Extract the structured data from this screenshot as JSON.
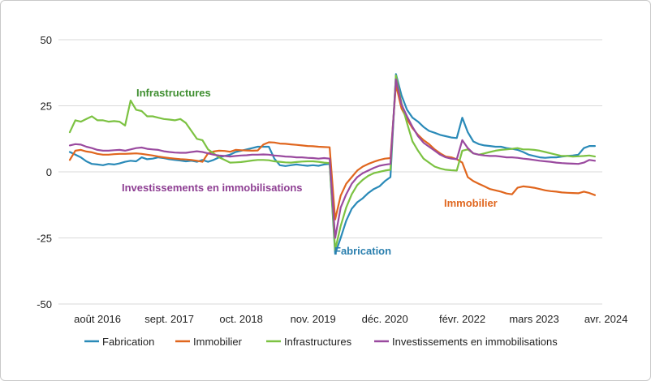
{
  "chart_data": {
    "type": "line",
    "title": "",
    "xlabel": "",
    "ylabel": "",
    "ylim": [
      -50,
      50
    ],
    "yticks": [
      50,
      25,
      0,
      -25,
      -50
    ],
    "ytick_labels": [
      "50",
      "25",
      "0",
      "-25",
      "-50"
    ],
    "xlim": [
      "2016-01",
      "2024-07"
    ],
    "xticks": [
      {
        "date": "2016-08",
        "label": "août 2016"
      },
      {
        "date": "2017-09",
        "label": "sept. 2017"
      },
      {
        "date": "2018-10",
        "label": "oct. 2018"
      },
      {
        "date": "2019-11",
        "label": "nov. 2019"
      },
      {
        "date": "2020-12",
        "label": "déc. 2020"
      },
      {
        "date": "2022-02",
        "label": "févr. 2022"
      },
      {
        "date": "2023-03",
        "label": "mars 2023"
      },
      {
        "date": "2024-04",
        "label": "avr. 2024"
      }
    ],
    "grid": "horizontal",
    "legend_position": "bottom",
    "start": "2016-03",
    "frequency": "monthly",
    "series": [
      {
        "name": "Fabrication",
        "color": "#2A8AB8",
        "label": "Fabrication",
        "values": [
          7.5,
          6.5,
          5.5,
          4.0,
          3.0,
          2.8,
          2.5,
          3.0,
          2.8,
          3.2,
          3.8,
          4.2,
          4.0,
          5.5,
          4.8,
          5.0,
          5.5,
          5.2,
          4.8,
          4.5,
          4.3,
          4.0,
          4.2,
          3.8,
          4.5,
          3.8,
          4.5,
          5.5,
          6.0,
          6.5,
          7.5,
          8.0,
          8.5,
          9.0,
          9.5,
          9.5,
          9.5,
          5.0,
          2.5,
          2.2,
          2.5,
          2.8,
          2.5,
          2.3,
          2.5,
          2.3,
          2.8,
          3.0,
          -31.0,
          -25.0,
          -18.5,
          -14.0,
          -11.5,
          -10.0,
          -8.0,
          -6.5,
          -5.5,
          -3.5,
          -2.0,
          37.0,
          29.0,
          23.5,
          20.5,
          19.0,
          17.0,
          15.5,
          14.8,
          14.0,
          13.5,
          13.0,
          12.8,
          20.5,
          15.0,
          11.5,
          10.5,
          10.0,
          9.8,
          9.5,
          9.5,
          9.0,
          8.7,
          8.3,
          7.5,
          6.5,
          6.0,
          5.5,
          5.3,
          5.5,
          5.5,
          5.8,
          6.0,
          6.2,
          6.5,
          9.0,
          9.8,
          9.8
        ]
      },
      {
        "name": "Immobilier",
        "color": "#E0661E",
        "label": "Immobilier",
        "values": [
          4.5,
          8.0,
          8.3,
          7.7,
          7.4,
          6.8,
          6.5,
          6.5,
          6.7,
          6.8,
          6.8,
          6.9,
          7.0,
          6.8,
          6.5,
          6.2,
          5.8,
          5.5,
          5.2,
          5.0,
          4.8,
          4.7,
          4.5,
          4.2,
          3.8,
          7.0,
          7.7,
          8.0,
          7.9,
          7.6,
          8.3,
          8.2,
          8.1,
          8.0,
          8.1,
          10.3,
          11.2,
          11.1,
          10.7,
          10.6,
          10.4,
          10.2,
          10.0,
          9.8,
          9.7,
          9.5,
          9.4,
          9.3,
          -18.0,
          -9.0,
          -4.5,
          -2.0,
          0.5,
          2.0,
          3.0,
          3.8,
          4.5,
          5.0,
          5.2,
          33.0,
          24.0,
          20.0,
          16.5,
          14.0,
          12.0,
          10.5,
          8.5,
          7.0,
          5.8,
          5.5,
          4.8,
          3.5,
          -2.0,
          -3.5,
          -4.5,
          -5.5,
          -6.5,
          -7.0,
          -7.5,
          -8.2,
          -8.5,
          -6.0,
          -5.5,
          -5.7,
          -6.0,
          -6.5,
          -7.0,
          -7.3,
          -7.5,
          -7.8,
          -7.9,
          -8.0,
          -8.1,
          -7.5,
          -8.0,
          -8.8
        ]
      },
      {
        "name": "Infrastructures",
        "color": "#7CC242",
        "label": "Infrastructures",
        "values": [
          15.0,
          19.5,
          19.0,
          20.0,
          21.0,
          19.5,
          19.5,
          19.0,
          19.2,
          19.0,
          17.5,
          27.0,
          23.5,
          23.0,
          21.0,
          21.0,
          20.5,
          20.0,
          19.8,
          19.5,
          20.0,
          18.5,
          15.5,
          12.5,
          12.0,
          8.5,
          7.0,
          5.5,
          4.5,
          3.5,
          3.6,
          3.7,
          4.0,
          4.3,
          4.5,
          4.5,
          4.4,
          4.0,
          3.8,
          3.6,
          3.5,
          3.7,
          3.9,
          4.0,
          4.0,
          3.8,
          3.5,
          3.3,
          -29.5,
          -20.5,
          -13.5,
          -8.5,
          -5.0,
          -3.0,
          -1.5,
          -0.5,
          0.0,
          0.5,
          0.8,
          36.5,
          26.0,
          18.5,
          11.5,
          8.0,
          5.0,
          3.5,
          2.0,
          1.3,
          0.8,
          0.6,
          0.5,
          8.0,
          8.5,
          7.0,
          6.5,
          7.0,
          7.5,
          8.0,
          8.3,
          8.5,
          8.7,
          9.0,
          8.5,
          8.5,
          8.3,
          8.0,
          7.5,
          7.0,
          6.5,
          6.0,
          6.0,
          5.8,
          5.9,
          6.0,
          6.2,
          5.8
        ]
      },
      {
        "name": "Investissements en immobilisations",
        "color": "#9A4A9F",
        "label": "Investissements en immobilisations",
        "values": [
          10.0,
          10.5,
          10.3,
          9.5,
          9.0,
          8.3,
          8.0,
          8.0,
          8.2,
          8.3,
          8.0,
          8.5,
          9.0,
          9.2,
          8.7,
          8.5,
          8.3,
          7.8,
          7.5,
          7.3,
          7.2,
          7.2,
          7.5,
          7.8,
          7.5,
          7.0,
          6.5,
          6.2,
          6.0,
          5.8,
          6.0,
          6.2,
          6.3,
          6.5,
          6.5,
          6.6,
          6.5,
          6.2,
          6.0,
          5.8,
          5.7,
          5.5,
          5.5,
          5.3,
          5.2,
          5.0,
          5.2,
          5.0,
          -25.0,
          -13.5,
          -8.5,
          -4.5,
          -2.0,
          -0.5,
          0.5,
          1.5,
          2.3,
          2.7,
          3.0,
          35.0,
          25.5,
          21.0,
          17.0,
          13.5,
          11.0,
          9.5,
          8.0,
          6.5,
          5.5,
          5.0,
          4.8,
          12.0,
          9.0,
          7.0,
          6.5,
          6.2,
          6.0,
          6.0,
          5.8,
          5.5,
          5.5,
          5.3,
          5.0,
          4.8,
          4.5,
          4.2,
          4.0,
          3.8,
          3.5,
          3.3,
          3.2,
          3.1,
          3.0,
          3.5,
          4.5,
          4.2
        ]
      }
    ]
  }
}
